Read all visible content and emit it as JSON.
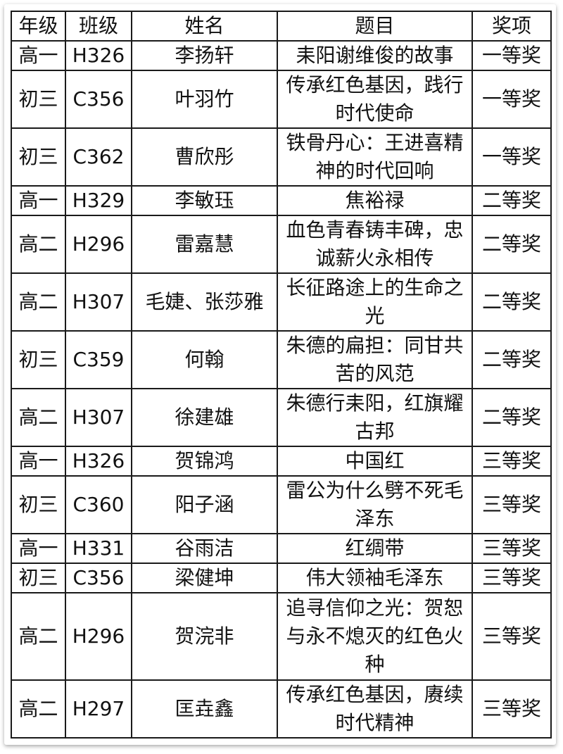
{
  "headers": [
    "年级",
    "班级",
    "姓名",
    "题目",
    "奖项"
  ],
  "rows": [
    {
      "grade": "高一",
      "class": "H326",
      "name": "李扬轩",
      "title": "耒阳谢维俊的故事",
      "award": "一等奖",
      "lines": 1
    },
    {
      "grade": "初三",
      "class": "C356",
      "name": "叶羽竹",
      "title": "传承红色基因，践行时代使命",
      "award": "一等奖",
      "lines": 2
    },
    {
      "grade": "初三",
      "class": "C362",
      "name": "曹欣彤",
      "title": "铁骨丹心：王进喜精神的时代回响",
      "award": "一等奖",
      "lines": 2
    },
    {
      "grade": "高一",
      "class": "H329",
      "name": "李敏珏",
      "title": "焦裕禄",
      "award": "二等奖",
      "lines": 1
    },
    {
      "grade": "高二",
      "class": "H296",
      "name": "雷嘉慧",
      "title": "血色青春铸丰碑，忠诚薪火永相传",
      "award": "二等奖",
      "lines": 2
    },
    {
      "grade": "高二",
      "class": "H307",
      "name": "毛婕、张莎雅",
      "title": "长征路途上的生命之光",
      "award": "二等奖",
      "lines": 2
    },
    {
      "grade": "初三",
      "class": "C359",
      "name": "何翰",
      "title": "朱德的扁担：同甘共苦的风范",
      "award": "二等奖",
      "lines": 2
    },
    {
      "grade": "高二",
      "class": "H307",
      "name": "徐建雄",
      "title": "朱德行耒阳，红旗耀古邦",
      "award": "二等奖",
      "lines": 2
    },
    {
      "grade": "高一",
      "class": "H326",
      "name": "贺锦鸿",
      "title": "中国红",
      "award": "三等奖",
      "lines": 1
    },
    {
      "grade": "初三",
      "class": "C360",
      "name": "阳子涵",
      "title": "雷公为什么劈不死毛泽东",
      "award": "三等奖",
      "lines": 2
    },
    {
      "grade": "高一",
      "class": "H331",
      "name": "谷雨洁",
      "title": "红绸带",
      "award": "三等奖",
      "lines": 1
    },
    {
      "grade": "初三",
      "class": "C356",
      "name": "梁健坤",
      "title": "伟大领袖毛泽东",
      "award": "三等奖",
      "lines": 1
    },
    {
      "grade": "高二",
      "class": "H296",
      "name": "贺浣非",
      "title": "追寻信仰之光：贺恕与永不熄灭的红色火种",
      "award": "三等奖",
      "lines": 3
    },
    {
      "grade": "高二",
      "class": "H297",
      "name": "匡垚鑫",
      "title": "传承红色基因，赓续时代精神",
      "award": "三等奖",
      "lines": 2
    }
  ]
}
